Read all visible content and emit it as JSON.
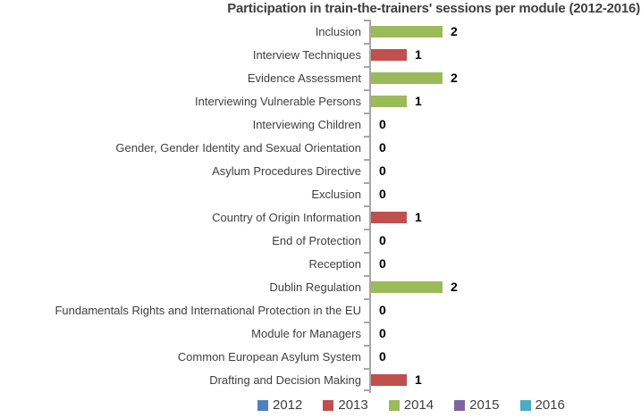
{
  "chart_data": {
    "type": "bar",
    "orientation": "horizontal",
    "title": "Participation in train-the-trainers' sessions per module (2012-2016)",
    "xlim": [
      0,
      2
    ],
    "grid": false,
    "legend_position": "bottom",
    "legend_entries": [
      {
        "label": "2012",
        "color": "#4f81bd"
      },
      {
        "label": "2013",
        "color": "#c0504d"
      },
      {
        "label": "2014",
        "color": "#9bbb59"
      },
      {
        "label": "2015",
        "color": "#8064a2"
      },
      {
        "label": "2016",
        "color": "#4bacc6"
      }
    ],
    "bars": [
      {
        "category": "Inclusion",
        "value": 2,
        "year": "2014"
      },
      {
        "category": "Interview Techniques",
        "value": 1,
        "year": "2013"
      },
      {
        "category": "Evidence Assessment",
        "value": 2,
        "year": "2014"
      },
      {
        "category": "Interviewing Vulnerable Persons",
        "value": 1,
        "year": "2014"
      },
      {
        "category": "Interviewing Children",
        "value": 0,
        "year": null
      },
      {
        "category": "Gender, Gender Identity and Sexual Orientation",
        "value": 0,
        "year": null
      },
      {
        "category": "Asylum Procedures Directive",
        "value": 0,
        "year": null
      },
      {
        "category": "Exclusion",
        "value": 0,
        "year": null
      },
      {
        "category": "Country of Origin Information",
        "value": 1,
        "year": "2013"
      },
      {
        "category": "End of Protection",
        "value": 0,
        "year": null
      },
      {
        "category": "Reception",
        "value": 0,
        "year": null
      },
      {
        "category": "Dublin Regulation",
        "value": 2,
        "year": "2014"
      },
      {
        "category": "Fundamentals Rights and International Protection in the EU",
        "value": 0,
        "year": null
      },
      {
        "category": "Module for Managers",
        "value": 0,
        "year": null
      },
      {
        "category": "Common European Asylum System",
        "value": 0,
        "year": null
      },
      {
        "category": "Drafting and Decision Making",
        "value": 1,
        "year": "2013"
      }
    ]
  }
}
